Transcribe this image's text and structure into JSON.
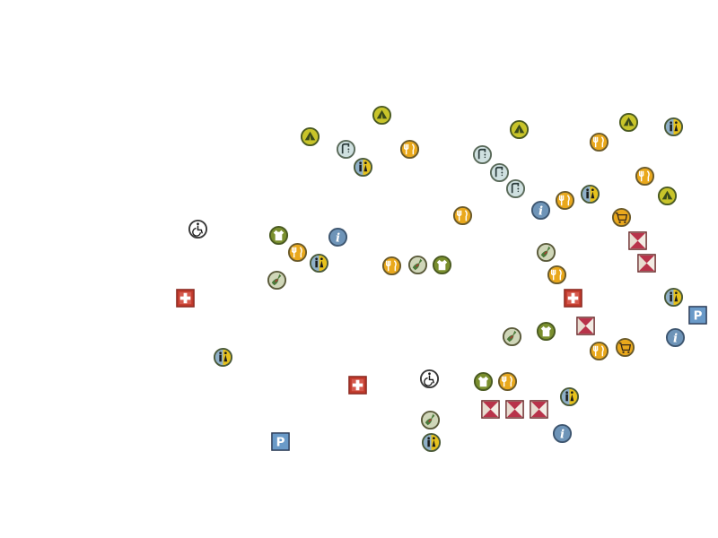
{
  "map": {
    "poi_types": {
      "camping": {
        "icon": "tent-icon",
        "fill": "#c8c42a",
        "ring": "#4a5a22"
      },
      "water": {
        "icon": "drinking-water-icon",
        "fill": "#cfe0e0",
        "ring": "#5a6a5a"
      },
      "toilet": {
        "icon": "toilets-icon",
        "fill": "#8fb0c8",
        "fill2": "#e7c21d",
        "ring": "#4a5a3a"
      },
      "food": {
        "icon": "fork-knife-icon",
        "fill": "#e9a81c",
        "ring": "#6a5a2a"
      },
      "clothing": {
        "icon": "tshirt-icon",
        "fill": "#7a8f2e",
        "ring": "#4a5a22"
      },
      "bottle": {
        "icon": "bottle-icon",
        "fill": "#cfd6b8",
        "ring": "#5a5a3a"
      },
      "info": {
        "icon": "info-icon",
        "fill": "#6e94b8",
        "ring": "#3e5670"
      },
      "shop": {
        "icon": "shopping-cart-icon",
        "fill": "#e9a81c",
        "ring": "#6a5a2a"
      },
      "hut": {
        "icon": "shelter-icon",
        "fill": "#b8334a",
        "ring": "#6a2a2a"
      },
      "firstaid": {
        "icon": "first-aid-icon",
        "fill": "#c0392b",
        "ring": "#8a2a22"
      },
      "parking": {
        "icon": "parking-icon",
        "fill": "#6a9ac8",
        "ring": "#2a3a55"
      },
      "wheelchair": {
        "icon": "wheelchair-icon",
        "fill": "#ffffff",
        "ring": "#3a3a3a"
      }
    },
    "parking_letter": "P",
    "info_letter": "i"
  }
}
